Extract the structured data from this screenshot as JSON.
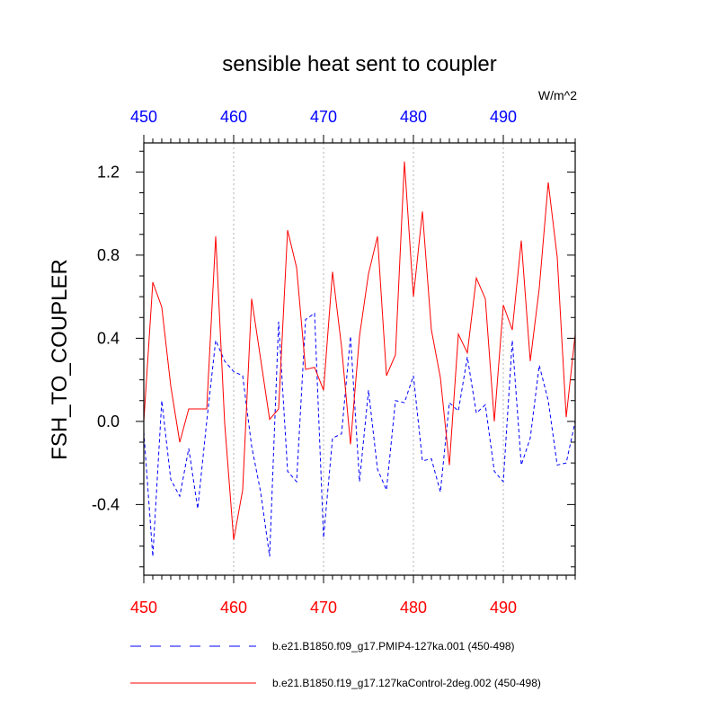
{
  "chart_data": {
    "type": "line",
    "title": "sensible heat sent to coupler",
    "units": "W/m^2",
    "ylabel": "FSH_TO_COUPLER",
    "xlabel": "",
    "xlim": [
      450,
      498
    ],
    "ylim": [
      -0.74,
      1.34
    ],
    "x_ticks": [
      450,
      460,
      470,
      480,
      490
    ],
    "y_ticks": [
      1.2,
      0.8,
      0.4,
      0.0,
      -0.4
    ],
    "y_tick_labels": [
      "1.2",
      "0.8",
      "0.4",
      "0.0",
      "-0.4"
    ],
    "top_axis_color": "#0000ff",
    "bottom_axis_color": "#ff0000",
    "vertical_gridlines_at": [
      460,
      470,
      480,
      490
    ],
    "legend_position": "bottom",
    "x": [
      450,
      451,
      452,
      453,
      454,
      455,
      456,
      457,
      458,
      459,
      460,
      461,
      462,
      463,
      464,
      465,
      466,
      467,
      468,
      469,
      470,
      471,
      472,
      473,
      474,
      475,
      476,
      477,
      478,
      479,
      480,
      481,
      482,
      483,
      484,
      485,
      486,
      487,
      488,
      489,
      490,
      491,
      492,
      493,
      494,
      495,
      496,
      497,
      498
    ],
    "series": [
      {
        "name": "b.e21.B1850.f09_g17.PMIP4-127ka.001 (450-498)",
        "color": "#0000ff",
        "dash": "dashed",
        "values": [
          -0.05,
          -0.65,
          0.1,
          -0.28,
          -0.36,
          -0.13,
          -0.42,
          0.0,
          0.39,
          0.29,
          0.24,
          0.22,
          -0.12,
          -0.34,
          -0.65,
          0.48,
          -0.24,
          -0.29,
          0.49,
          0.52,
          -0.56,
          -0.08,
          -0.06,
          0.41,
          -0.29,
          0.15,
          -0.23,
          -0.33,
          0.1,
          0.09,
          0.22,
          -0.19,
          -0.18,
          -0.34,
          0.09,
          0.05,
          0.31,
          0.04,
          0.08,
          -0.24,
          -0.29,
          0.39,
          -0.21,
          -0.08,
          0.27,
          0.1,
          -0.21,
          -0.2,
          0.0
        ]
      },
      {
        "name": "b.e21.B1850.f19_g17.127kaControl-2deg.002 (450-498)",
        "color": "#ff0000",
        "dash": "solid",
        "values": [
          0.0,
          0.67,
          0.55,
          0.17,
          -0.1,
          0.06,
          0.06,
          0.06,
          0.89,
          -0.01,
          -0.57,
          -0.33,
          0.59,
          0.3,
          0.01,
          0.06,
          0.92,
          0.74,
          0.25,
          0.26,
          0.15,
          0.72,
          0.36,
          -0.11,
          0.41,
          0.71,
          0.89,
          0.22,
          0.32,
          1.25,
          0.6,
          1.01,
          0.44,
          0.21,
          -0.21,
          0.42,
          0.33,
          0.69,
          0.59,
          0.0,
          0.56,
          0.44,
          0.87,
          0.29,
          0.64,
          1.15,
          0.79,
          0.02,
          0.42
        ]
      }
    ]
  }
}
